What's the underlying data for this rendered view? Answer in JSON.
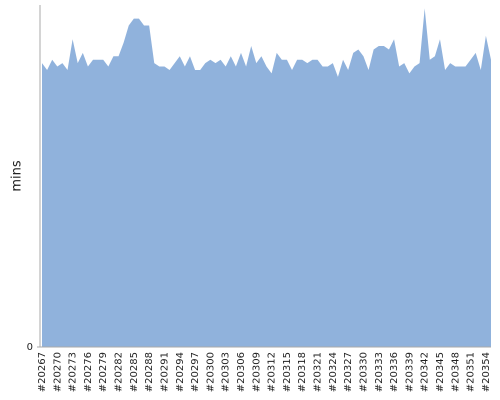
{
  "chart_data": {
    "type": "area",
    "y_label": "mins",
    "color": "#90b2dc",
    "categories": [
      "#20267",
      null,
      null,
      "#20270",
      null,
      null,
      "#20273",
      null,
      null,
      "#20276",
      null,
      null,
      "#20279",
      null,
      null,
      "#20282",
      null,
      null,
      "#20285",
      null,
      null,
      "#20288",
      null,
      null,
      "#20291",
      null,
      null,
      "#20294",
      null,
      null,
      "#20297",
      null,
      null,
      "#20300",
      null,
      null,
      "#20303",
      null,
      null,
      "#20306",
      null,
      null,
      "#20309",
      null,
      null,
      "#20312",
      null,
      null,
      "#20315",
      null,
      null,
      "#20318",
      null,
      null,
      "#20321",
      null,
      null,
      "#20324",
      null,
      null,
      "#20327",
      null,
      null,
      "#20330",
      null,
      null,
      "#20333",
      null,
      null,
      "#20336",
      null,
      null,
      "#20339",
      null,
      null,
      "#20342",
      null,
      null,
      "#20345",
      null,
      null,
      "#20348",
      null,
      null,
      "#20351",
      null,
      null,
      "#20354",
      null
    ],
    "values": [
      83,
      81,
      84,
      82,
      83,
      81,
      90,
      83,
      86,
      82,
      84,
      84,
      84,
      82,
      85,
      85,
      89,
      94,
      96,
      96,
      94,
      94,
      83,
      82,
      82,
      81,
      83,
      85,
      82,
      85,
      81,
      81,
      83,
      84,
      83,
      84,
      82,
      85,
      82,
      86,
      82,
      88,
      83,
      85,
      82,
      80,
      86,
      84,
      84,
      81,
      84,
      84,
      83,
      84,
      84,
      82,
      82,
      83,
      79,
      84,
      81,
      86,
      87,
      85,
      81,
      87,
      88,
      88,
      87,
      90,
      82,
      83,
      80,
      82,
      83,
      99,
      84,
      85,
      90,
      81,
      83,
      82,
      82,
      82,
      84,
      86,
      81,
      91,
      84
    ],
    "ylim": [
      0,
      100
    ],
    "yticks": [
      0
    ]
  }
}
